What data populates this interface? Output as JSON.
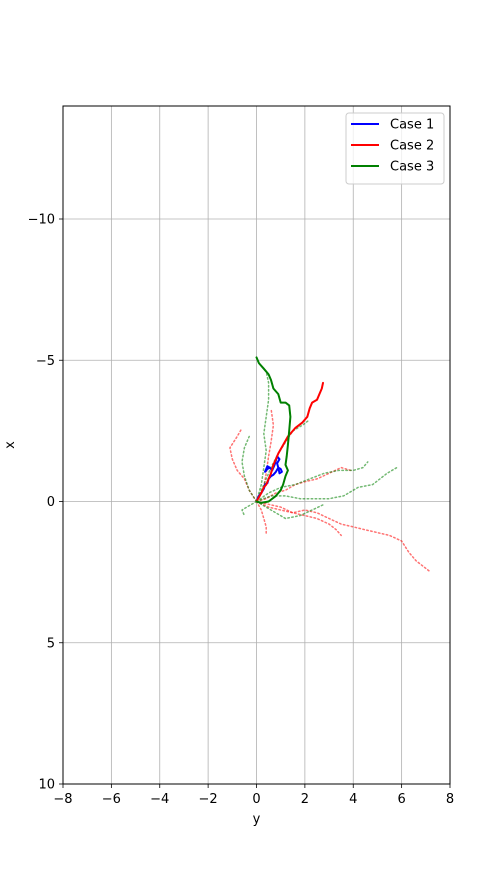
{
  "chart_data": {
    "type": "line",
    "title": "",
    "xlabel": "y",
    "ylabel": "x",
    "xlim": [
      -8,
      8
    ],
    "ylim": [
      10,
      -14
    ],
    "y_axis_inverted": true,
    "grid": true,
    "legend_position": "top-right",
    "xticks": [
      "−8",
      "−6",
      "−4",
      "−2",
      "0",
      "2",
      "4",
      "6",
      "8"
    ],
    "xtick_values": [
      -8,
      -6,
      -4,
      -2,
      0,
      2,
      4,
      6,
      8
    ],
    "yticks": [
      "−10",
      "−5",
      "0",
      "5",
      "10"
    ],
    "ytick_values": [
      -10,
      -5,
      0,
      5,
      10
    ],
    "series": [
      {
        "name": "Case 1",
        "color": "#0000ff",
        "style": "solid",
        "points": [
          [
            0,
            0
          ],
          [
            0.1,
            -0.2
          ],
          [
            0.2,
            -0.3
          ],
          [
            0.3,
            -0.45
          ],
          [
            0.35,
            -0.6
          ],
          [
            0.45,
            -0.65
          ],
          [
            0.5,
            -0.8
          ],
          [
            0.6,
            -0.9
          ],
          [
            0.7,
            -0.95
          ],
          [
            0.8,
            -1.05
          ],
          [
            0.9,
            -1.2
          ],
          [
            1.0,
            -1.15
          ],
          [
            1.05,
            -1.05
          ],
          [
            0.95,
            -1.0
          ],
          [
            0.9,
            -1.2
          ],
          [
            0.85,
            -1.35
          ],
          [
            0.95,
            -1.5
          ],
          [
            0.85,
            -1.6
          ],
          [
            0.75,
            -1.3
          ],
          [
            0.65,
            -1.1
          ],
          [
            0.55,
            -1.2
          ],
          [
            0.45,
            -1.15
          ],
          [
            0.35,
            -1.05
          ],
          [
            0.45,
            -1.25
          ],
          [
            0.55,
            -1.2
          ]
        ]
      },
      {
        "name": "Case 2",
        "color": "#ff0000",
        "style": "solid",
        "points": [
          [
            0,
            0
          ],
          [
            0.2,
            -0.3
          ],
          [
            0.3,
            -0.5
          ],
          [
            0.4,
            -0.6
          ],
          [
            0.5,
            -0.8
          ],
          [
            0.6,
            -1.0
          ],
          [
            0.7,
            -1.3
          ],
          [
            0.8,
            -1.5
          ],
          [
            0.9,
            -1.7
          ],
          [
            1.1,
            -2.0
          ],
          [
            1.3,
            -2.3
          ],
          [
            1.6,
            -2.6
          ],
          [
            1.9,
            -2.8
          ],
          [
            2.1,
            -3.0
          ],
          [
            2.2,
            -3.3
          ],
          [
            2.3,
            -3.5
          ],
          [
            2.5,
            -3.6
          ],
          [
            2.6,
            -3.8
          ],
          [
            2.7,
            -4.0
          ],
          [
            2.75,
            -4.2
          ]
        ]
      },
      {
        "name": "Case 3",
        "color": "#008000",
        "style": "solid",
        "points": [
          [
            0,
            0
          ],
          [
            0.2,
            0.05
          ],
          [
            0.5,
            0.0
          ],
          [
            0.8,
            -0.2
          ],
          [
            1.0,
            -0.4
          ],
          [
            1.1,
            -0.6
          ],
          [
            1.2,
            -0.9
          ],
          [
            1.3,
            -1.1
          ],
          [
            1.2,
            -1.3
          ],
          [
            1.25,
            -1.6
          ],
          [
            1.3,
            -2.0
          ],
          [
            1.35,
            -2.5
          ],
          [
            1.4,
            -3.0
          ],
          [
            1.35,
            -3.4
          ],
          [
            1.2,
            -3.5
          ],
          [
            1.0,
            -3.5
          ],
          [
            0.9,
            -3.8
          ],
          [
            0.7,
            -4.0
          ],
          [
            0.6,
            -4.3
          ],
          [
            0.5,
            -4.5
          ],
          [
            0.3,
            -4.7
          ],
          [
            0.1,
            -4.9
          ],
          [
            0,
            -5.1
          ]
        ]
      },
      {
        "name": "",
        "color": "#ff0000",
        "style": "dotted",
        "points": [
          [
            0,
            0
          ],
          [
            0.5,
            0.2
          ],
          [
            1.0,
            0.3
          ],
          [
            1.5,
            0.4
          ],
          [
            2.0,
            0.3
          ],
          [
            2.5,
            0.4
          ],
          [
            3.0,
            0.6
          ],
          [
            3.5,
            0.8
          ],
          [
            4.0,
            0.9
          ],
          [
            4.5,
            1.0
          ],
          [
            5.0,
            1.1
          ],
          [
            5.5,
            1.2
          ],
          [
            6.0,
            1.4
          ],
          [
            6.3,
            1.8
          ],
          [
            6.6,
            2.1
          ],
          [
            6.9,
            2.3
          ],
          [
            7.2,
            2.5
          ]
        ]
      },
      {
        "name": "",
        "color": "#ff0000",
        "style": "dotted",
        "points": [
          [
            0,
            0
          ],
          [
            -0.3,
            -0.4
          ],
          [
            -0.5,
            -0.8
          ],
          [
            -0.8,
            -1.1
          ],
          [
            -1.0,
            -1.5
          ],
          [
            -1.1,
            -1.9
          ],
          [
            -0.8,
            -2.3
          ],
          [
            -0.6,
            -2.6
          ]
        ]
      },
      {
        "name": "",
        "color": "#ff0000",
        "style": "dotted",
        "points": [
          [
            0,
            0
          ],
          [
            0.4,
            -0.1
          ],
          [
            0.8,
            -0.3
          ],
          [
            1.2,
            -0.4
          ],
          [
            1.6,
            -0.6
          ],
          [
            2.0,
            -0.7
          ],
          [
            2.5,
            -0.8
          ],
          [
            3.0,
            -1.0
          ],
          [
            3.5,
            -1.2
          ],
          [
            3.9,
            -1.1
          ]
        ]
      },
      {
        "name": "",
        "color": "#ff0000",
        "style": "dotted",
        "points": [
          [
            0,
            0
          ],
          [
            0.3,
            -0.5
          ],
          [
            0.4,
            -1.0
          ],
          [
            0.5,
            -1.6
          ],
          [
            0.6,
            -2.1
          ],
          [
            0.7,
            -2.7
          ],
          [
            0.6,
            -3.3
          ]
        ]
      },
      {
        "name": "",
        "color": "#ff0000",
        "style": "dotted",
        "points": [
          [
            0,
            0
          ],
          [
            0.5,
            0.1
          ],
          [
            1.0,
            0.2
          ],
          [
            1.5,
            0.4
          ],
          [
            2.0,
            0.5
          ],
          [
            2.5,
            0.6
          ],
          [
            3.0,
            0.8
          ],
          [
            3.3,
            1.0
          ],
          [
            3.5,
            1.2
          ]
        ]
      },
      {
        "name": "",
        "color": "#ff0000",
        "style": "dotted",
        "points": [
          [
            0,
            0
          ],
          [
            0.2,
            0.3
          ],
          [
            0.3,
            0.6
          ],
          [
            0.4,
            0.9
          ],
          [
            0.4,
            1.2
          ]
        ]
      },
      {
        "name": "",
        "color": "#008000",
        "style": "dotted",
        "points": [
          [
            0,
            0
          ],
          [
            0.6,
            -0.2
          ],
          [
            1.2,
            -0.2
          ],
          [
            1.8,
            -0.1
          ],
          [
            2.4,
            -0.1
          ],
          [
            3.0,
            -0.1
          ],
          [
            3.6,
            -0.2
          ],
          [
            4.2,
            -0.5
          ],
          [
            4.8,
            -0.6
          ],
          [
            5.4,
            -1.0
          ],
          [
            5.8,
            -1.2
          ]
        ]
      },
      {
        "name": "",
        "color": "#008000",
        "style": "dotted",
        "points": [
          [
            0,
            0
          ],
          [
            0.5,
            -0.3
          ],
          [
            1.0,
            -0.5
          ],
          [
            1.6,
            -0.6
          ],
          [
            2.2,
            -0.8
          ],
          [
            2.8,
            -1.0
          ],
          [
            3.4,
            -1.1
          ],
          [
            4.0,
            -1.1
          ],
          [
            4.4,
            -1.2
          ],
          [
            4.6,
            -1.4
          ]
        ]
      },
      {
        "name": "",
        "color": "#008000",
        "style": "dotted",
        "points": [
          [
            0,
            0
          ],
          [
            0.2,
            -0.6
          ],
          [
            0.3,
            -1.2
          ],
          [
            0.4,
            -1.8
          ],
          [
            0.3,
            -2.4
          ],
          [
            0.4,
            -3.0
          ],
          [
            0.5,
            -3.6
          ],
          [
            0.5,
            -4.2
          ],
          [
            0.4,
            -4.6
          ]
        ]
      },
      {
        "name": "",
        "color": "#008000",
        "style": "dotted",
        "points": [
          [
            0,
            0
          ],
          [
            -0.3,
            -0.4
          ],
          [
            -0.5,
            -0.9
          ],
          [
            -0.6,
            -1.4
          ],
          [
            -0.5,
            -1.9
          ],
          [
            -0.3,
            -2.3
          ]
        ]
      },
      {
        "name": "",
        "color": "#008000",
        "style": "dotted",
        "points": [
          [
            0,
            0
          ],
          [
            0.6,
            0.3
          ],
          [
            1.2,
            0.6
          ],
          [
            1.8,
            0.5
          ],
          [
            2.3,
            0.3
          ],
          [
            2.8,
            0.1
          ]
        ]
      },
      {
        "name": "",
        "color": "#008000",
        "style": "dotted",
        "points": [
          [
            0,
            0
          ],
          [
            0.3,
            -0.6
          ],
          [
            0.6,
            -1.2
          ],
          [
            0.9,
            -1.7
          ],
          [
            1.2,
            -2.1
          ],
          [
            1.5,
            -2.5
          ],
          [
            1.9,
            -2.7
          ],
          [
            2.2,
            -2.9
          ]
        ]
      },
      {
        "name": "",
        "color": "#008000",
        "style": "dotted",
        "points": [
          [
            0,
            0
          ],
          [
            -0.4,
            0.2
          ],
          [
            -0.6,
            0.3
          ],
          [
            -0.5,
            0.5
          ]
        ]
      }
    ]
  }
}
